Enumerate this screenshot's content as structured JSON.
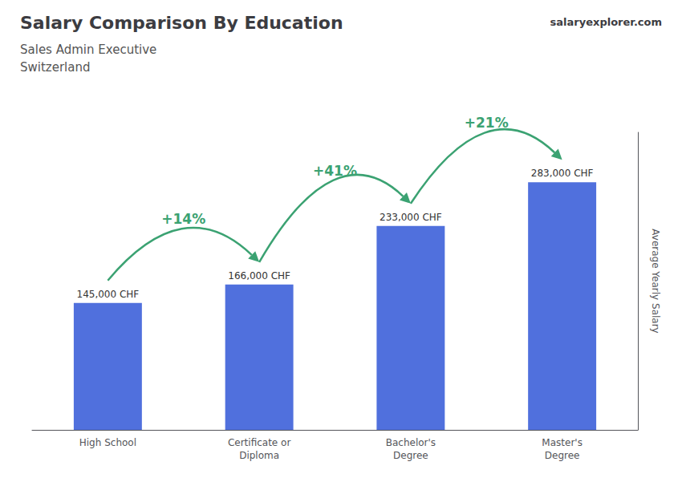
{
  "chart_data": {
    "type": "bar",
    "title": "Salary Comparison By Education",
    "subtitle": [
      "Sales Admin Executive",
      "Switzerland"
    ],
    "ylabel": "Average Yearly Salary",
    "categories": [
      "High School",
      "Certificate or\nDiploma",
      "Bachelor's\nDegree",
      "Master's\nDegree"
    ],
    "values": [
      145000,
      166000,
      233000,
      283000
    ],
    "value_labels": [
      "145,000 CHF",
      "166,000 CHF",
      "233,000 CHF",
      "283,000 CHF"
    ],
    "data_labels": true,
    "ylim": [
      0,
      340000
    ],
    "tick_labels": "x",
    "grid": false,
    "annotations": [
      {
        "text": "+14%",
        "from": "High School",
        "to": "Certificate or\nDiploma"
      },
      {
        "text": "+41%",
        "from": "Certificate or\nDiploma",
        "to": "Bachelor's\nDegree"
      },
      {
        "text": "+21%",
        "from": "Bachelor's\nDegree",
        "to": "Master's\nDegree"
      },
      "salaryexplorer.com"
    ]
  }
}
